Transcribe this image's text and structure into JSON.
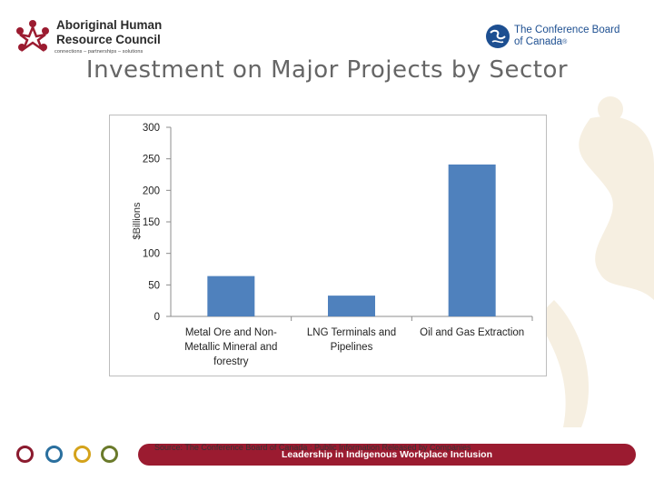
{
  "header": {
    "org_name_line1": "Aboriginal Human",
    "org_name_line2": "Resource Council",
    "org_tagline": "connections – partnerships – solutions",
    "partner_line1": "The Conference Board",
    "partner_line2": "of Canada"
  },
  "slide": {
    "title": "Investment on Major Projects by Sector"
  },
  "chart_data": {
    "type": "bar",
    "title": "",
    "xlabel": "",
    "ylabel": "$Billions",
    "categories": [
      [
        "Metal Ore and Non-",
        "Metallic Mineral and",
        "forestry"
      ],
      [
        "LNG Terminals and",
        "Pipelines"
      ],
      [
        "Oil and Gas Extraction"
      ]
    ],
    "values": [
      64,
      33,
      241
    ],
    "ylim": [
      0,
      300
    ],
    "yticks": [
      0,
      50,
      100,
      150,
      200,
      250,
      300
    ],
    "grid": false,
    "legend": "none",
    "bar_color": "#4f81bd"
  },
  "footer": {
    "source": "Source: The Conference Board of Canada ; Public Information Released by Companies",
    "tagline": "Leadership in Indigenous Workplace Inclusion"
  },
  "colors": {
    "brand_red": "#9b1b30",
    "circle_colors": [
      "#8b1a2e",
      "#2a6f9e",
      "#d4a21a",
      "#6a7a2a"
    ]
  }
}
